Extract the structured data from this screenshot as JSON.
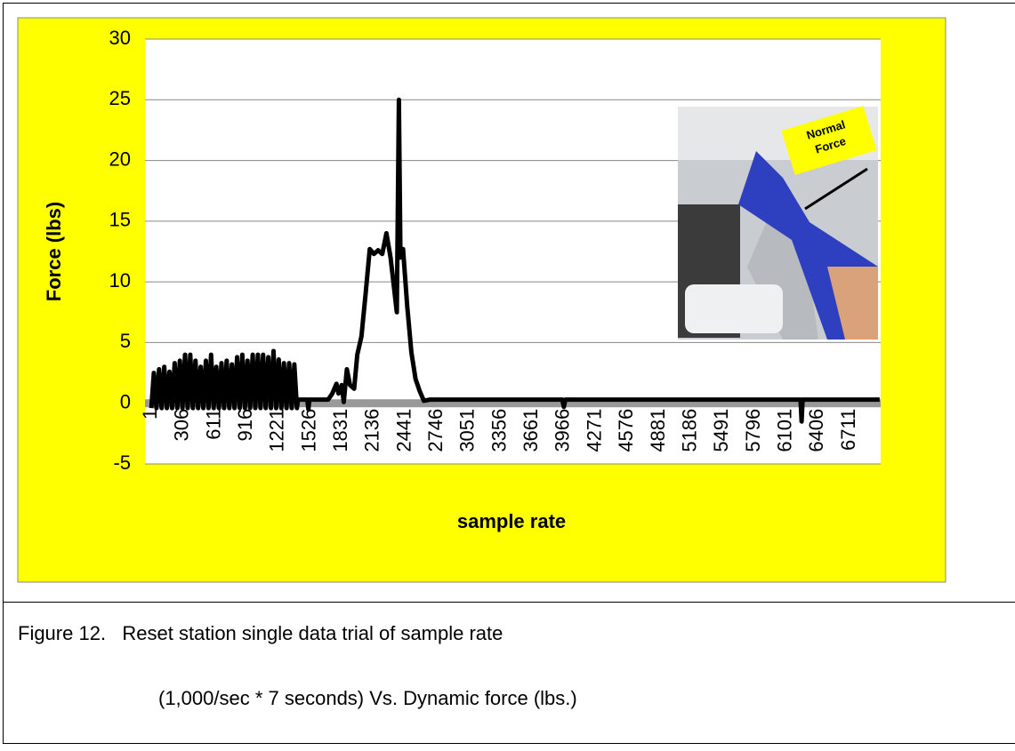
{
  "chart_data": {
    "type": "line",
    "ylabel": "Force (lbs)",
    "xlabel": "sample rate",
    "annotation": "Normal Force",
    "x": [
      1,
      25,
      50,
      75,
      100,
      125,
      150,
      175,
      200,
      225,
      250,
      275,
      300,
      325,
      350,
      375,
      400,
      425,
      450,
      475,
      500,
      525,
      550,
      575,
      600,
      625,
      650,
      675,
      700,
      725,
      750,
      775,
      800,
      825,
      850,
      875,
      900,
      925,
      950,
      975,
      1000,
      1025,
      1050,
      1075,
      1100,
      1125,
      1150,
      1175,
      1200,
      1225,
      1250,
      1275,
      1300,
      1325,
      1350,
      1375,
      1400,
      1410,
      1500,
      1510,
      1520,
      1700,
      1740,
      1780,
      1800,
      1830,
      1850,
      1880,
      1910,
      1950,
      1980,
      2020,
      2060,
      2100,
      2140,
      2180,
      2220,
      2260,
      2300,
      2340,
      2360,
      2380,
      2395,
      2420,
      2460,
      2500,
      2540,
      2580,
      2620,
      2680,
      3950,
      3965,
      3980,
      6240,
      6250,
      6260,
      7000
    ],
    "values": [
      -0.4,
      2.5,
      -0.4,
      2.8,
      -0.4,
      3,
      -0.4,
      2.6,
      -0.4,
      3.3,
      -0.4,
      3.5,
      -0.4,
      4,
      -0.4,
      4,
      -0.4,
      3.5,
      -0.4,
      3,
      -0.4,
      3.5,
      -0.4,
      4,
      -0.4,
      3,
      -0.4,
      3.3,
      -0.4,
      3.5,
      -0.4,
      3.2,
      -0.4,
      3.8,
      -0.4,
      4,
      -0.4,
      3.5,
      -0.4,
      4,
      -0.4,
      4,
      -0.4,
      4,
      -0.4,
      3.8,
      -0.4,
      4.3,
      -0.4,
      3.6,
      -0.4,
      3.3,
      -0.4,
      3.3,
      -0.4,
      3.2,
      -0.4,
      0.3,
      0.3,
      -0.5,
      0.3,
      0.3,
      0.8,
      1.6,
      0.8,
      1.5,
      0.1,
      2.8,
      1.5,
      1.2,
      4,
      5.5,
      9,
      12.7,
      12.3,
      12.6,
      12.3,
      14,
      12,
      9,
      7.5,
      25,
      12,
      12.7,
      8,
      4.2,
      2,
      1,
      0.2,
      0.3,
      0.3,
      -0.3,
      0.3,
      0.3,
      -1.5,
      0.3,
      0.3
    ],
    "color": "#000000",
    "xlim": [
      -60,
      7010
    ],
    "xticks": [
      1,
      306,
      611,
      916,
      1221,
      1526,
      1831,
      2136,
      2441,
      2746,
      3051,
      3356,
      3661,
      3966,
      4271,
      4576,
      4881,
      5186,
      5491,
      5796,
      6101,
      6406,
      6711
    ],
    "ylim": [
      -5,
      30
    ],
    "yticks": [
      -5,
      0,
      5,
      10,
      15,
      20,
      25,
      30
    ],
    "grid": true
  },
  "caption": [
    "Figure 12.   Reset station single data trial of sample rate",
    "(1,000/sec * 7 seconds) Vs. Dynamic force (lbs.)"
  ]
}
